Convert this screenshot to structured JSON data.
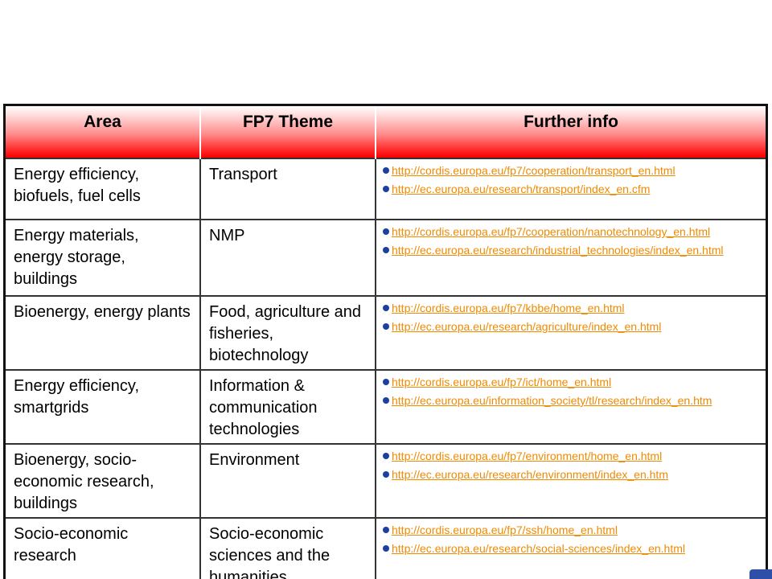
{
  "table": {
    "headers": [
      "Area",
      "FP7 Theme",
      "Further info"
    ],
    "rows": [
      {
        "area": "Energy efficiency, biofuels, fuel cells",
        "theme": "Transport",
        "links": [
          "http://cordis.europa.eu/fp7/cooperation/transport_en.html",
          "http://ec.europa.eu/research/transport/index_en.cfm"
        ]
      },
      {
        "area": "Energy materials, energy storage, buildings",
        "theme": "NMP",
        "links": [
          "http://cordis.europa.eu/fp7/cooperation/nanotechnology_en.html",
          "http://ec.europa.eu/research/industrial_technologies/index_en.html"
        ]
      },
      {
        "area": "Bioenergy, energy plants",
        "theme": "Food, agriculture and fisheries, biotechnology",
        "links": [
          "http://cordis.europa.eu/fp7/kbbe/home_en.html",
          "http://ec.europa.eu/research/agriculture/index_en.html"
        ]
      },
      {
        "area": "Energy efficiency, smartgrids",
        "theme": "Information & communication technologies",
        "links": [
          "http://cordis.europa.eu/fp7/ict/home_en.html",
          "http://ec.europa.eu/information_society/tl/research/index_en.htm"
        ]
      },
      {
        "area": "Bioenergy, socio-economic research, buildings",
        "theme": "Environment",
        "links": [
          "http://cordis.europa.eu/fp7/environment/home_en.html",
          "http://ec.europa.eu/research/environment/index_en.htm"
        ]
      },
      {
        "area": "Socio-economic research",
        "theme": "Socio-economic sciences and the humanities",
        "links": [
          "http://cordis.europa.eu/fp7/ssh/home_en.html",
          "http://ec.europa.eu/research/social-sciences/index_en.html"
        ]
      }
    ]
  },
  "colors": {
    "link": "#f08a00",
    "bullet": "#1f3f9f",
    "header_gradient_end": "#f80000"
  }
}
